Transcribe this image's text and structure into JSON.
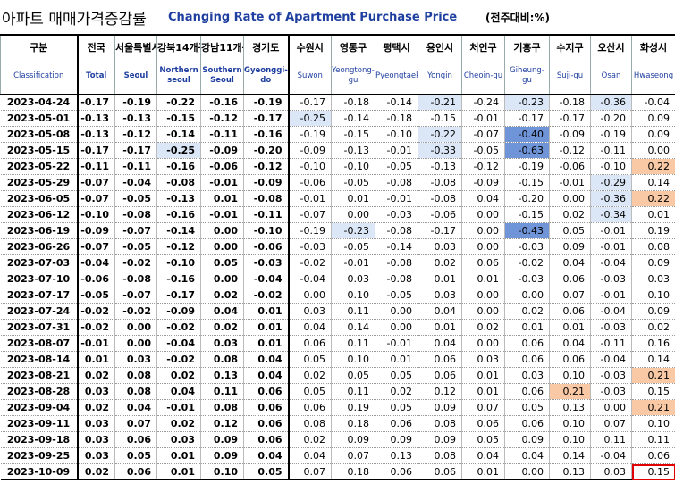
{
  "title": {
    "korean": "아파트 매매가격증감률",
    "english": "Changing Rate of Apartment Purchase Price",
    "unit": "(전주대비:%)"
  },
  "columns": [
    {
      "ko": "구분",
      "en": "Classification"
    },
    {
      "ko": "전국",
      "en": "Total"
    },
    {
      "ko": "서울특별시",
      "en": "Seoul"
    },
    {
      "ko": "강북14개구",
      "en": "Northern seoul"
    },
    {
      "ko": "강남11개구",
      "en": "Southern Seoul"
    },
    {
      "ko": "경기도",
      "en": "Gyeonggi-do"
    },
    {
      "ko": "수원시",
      "en": "Suwon"
    },
    {
      "ko": "영통구",
      "en": "Yeongtong-gu"
    },
    {
      "ko": "평택시",
      "en": "Pyeongtaek"
    },
    {
      "ko": "용인시",
      "en": "Yongin"
    },
    {
      "ko": "처인구",
      "en": "Cheoin-gu"
    },
    {
      "ko": "기흥구",
      "en": "Giheung-gu"
    },
    {
      "ko": "수지구",
      "en": "Suji-gu"
    },
    {
      "ko": "오산시",
      "en": "Osan"
    },
    {
      "ko": "화성시",
      "en": "Hwaseong"
    }
  ],
  "colors": {
    "light_blue": "#dbe7f7",
    "mid_blue": "#6f95d8",
    "orange": "#f9c9a6",
    "highlight_box": "#e00000"
  },
  "rows": [
    {
      "date": "2023-04-24",
      "v": [
        "-0.17",
        "-0.19",
        "-0.22",
        "-0.16",
        "-0.19",
        "-0.17",
        "-0.18",
        "-0.14",
        "-0.21",
        "-0.24",
        "-0.23",
        "-0.18",
        "-0.36",
        "-0.04"
      ]
    },
    {
      "date": "2023-05-01",
      "v": [
        "-0.13",
        "-0.13",
        "-0.15",
        "-0.12",
        "-0.17",
        "-0.25",
        "-0.14",
        "-0.18",
        "-0.15",
        "-0.01",
        "-0.17",
        "-0.17",
        "-0.20",
        "0.09"
      ]
    },
    {
      "date": "2023-05-08",
      "v": [
        "-0.13",
        "-0.12",
        "-0.14",
        "-0.11",
        "-0.16",
        "-0.19",
        "-0.15",
        "-0.10",
        "-0.22",
        "-0.07",
        "-0.40",
        "-0.09",
        "-0.19",
        "0.09"
      ]
    },
    {
      "date": "2023-05-15",
      "v": [
        "-0.17",
        "-0.17",
        "-0.25",
        "-0.09",
        "-0.20",
        "-0.09",
        "-0.13",
        "-0.01",
        "-0.33",
        "-0.05",
        "-0.63",
        "-0.12",
        "-0.11",
        "0.00"
      ]
    },
    {
      "date": "2023-05-22",
      "v": [
        "-0.11",
        "-0.11",
        "-0.16",
        "-0.06",
        "-0.12",
        "-0.10",
        "-0.10",
        "-0.05",
        "-0.13",
        "-0.12",
        "-0.19",
        "-0.06",
        "-0.10",
        "0.22"
      ]
    },
    {
      "date": "2023-05-29",
      "v": [
        "-0.07",
        "-0.04",
        "-0.08",
        "-0.01",
        "-0.09",
        "-0.06",
        "-0.05",
        "-0.08",
        "-0.08",
        "-0.09",
        "-0.15",
        "-0.01",
        "-0.29",
        "0.14"
      ]
    },
    {
      "date": "2023-06-05",
      "v": [
        "-0.07",
        "-0.05",
        "-0.13",
        "0.01",
        "-0.08",
        "-0.01",
        "0.01",
        "-0.01",
        "-0.08",
        "0.04",
        "-0.20",
        "0.00",
        "-0.36",
        "0.22"
      ]
    },
    {
      "date": "2023-06-12",
      "v": [
        "-0.10",
        "-0.08",
        "-0.16",
        "-0.01",
        "-0.11",
        "-0.07",
        "0.00",
        "-0.03",
        "-0.06",
        "0.00",
        "-0.15",
        "0.02",
        "-0.34",
        "0.01"
      ]
    },
    {
      "date": "2023-06-19",
      "v": [
        "-0.09",
        "-0.07",
        "-0.14",
        "0.00",
        "-0.10",
        "-0.19",
        "-0.23",
        "-0.08",
        "-0.17",
        "0.00",
        "-0.43",
        "0.05",
        "-0.01",
        "0.19"
      ]
    },
    {
      "date": "2023-06-26",
      "v": [
        "-0.07",
        "-0.05",
        "-0.12",
        "0.00",
        "-0.06",
        "-0.03",
        "-0.05",
        "-0.14",
        "0.03",
        "0.00",
        "-0.03",
        "0.09",
        "-0.01",
        "0.08"
      ]
    },
    {
      "date": "2023-07-03",
      "v": [
        "-0.04",
        "-0.02",
        "-0.10",
        "0.05",
        "-0.03",
        "-0.02",
        "-0.01",
        "-0.08",
        "0.02",
        "0.06",
        "-0.02",
        "0.04",
        "-0.04",
        "0.09"
      ]
    },
    {
      "date": "2023-07-10",
      "v": [
        "-0.06",
        "-0.08",
        "-0.16",
        "0.00",
        "-0.04",
        "-0.04",
        "0.03",
        "-0.08",
        "0.01",
        "0.01",
        "-0.03",
        "0.06",
        "-0.03",
        "0.03"
      ]
    },
    {
      "date": "2023-07-17",
      "v": [
        "-0.05",
        "-0.07",
        "-0.17",
        "0.02",
        "-0.02",
        "0.00",
        "0.10",
        "-0.05",
        "0.03",
        "0.00",
        "0.00",
        "0.07",
        "-0.01",
        "0.10"
      ]
    },
    {
      "date": "2023-07-24",
      "v": [
        "-0.02",
        "-0.02",
        "-0.09",
        "0.04",
        "0.01",
        "0.03",
        "0.11",
        "0.00",
        "0.04",
        "0.00",
        "0.02",
        "0.06",
        "-0.04",
        "0.09"
      ]
    },
    {
      "date": "2023-07-31",
      "v": [
        "-0.02",
        "0.00",
        "-0.02",
        "0.02",
        "0.01",
        "0.04",
        "0.14",
        "0.00",
        "0.01",
        "0.02",
        "0.01",
        "0.01",
        "-0.03",
        "0.02"
      ]
    },
    {
      "date": "2023-08-07",
      "v": [
        "-0.01",
        "0.00",
        "-0.04",
        "0.03",
        "0.01",
        "0.06",
        "0.11",
        "-0.01",
        "0.04",
        "0.00",
        "0.06",
        "0.04",
        "-0.11",
        "0.16"
      ]
    },
    {
      "date": "2023-08-14",
      "v": [
        "0.01",
        "0.03",
        "-0.02",
        "0.08",
        "0.04",
        "0.05",
        "0.10",
        "0.01",
        "0.06",
        "0.03",
        "0.06",
        "0.06",
        "-0.04",
        "0.14"
      ]
    },
    {
      "date": "2023-08-21",
      "v": [
        "0.02",
        "0.08",
        "0.02",
        "0.13",
        "0.04",
        "0.02",
        "0.05",
        "0.05",
        "0.06",
        "0.01",
        "0.03",
        "0.10",
        "-0.03",
        "0.21"
      ]
    },
    {
      "date": "2023-08-28",
      "v": [
        "0.03",
        "0.08",
        "0.04",
        "0.11",
        "0.06",
        "0.05",
        "0.11",
        "0.02",
        "0.12",
        "0.01",
        "0.06",
        "0.21",
        "-0.03",
        "0.15"
      ]
    },
    {
      "date": "2023-09-04",
      "v": [
        "0.02",
        "0.04",
        "-0.01",
        "0.08",
        "0.06",
        "0.06",
        "0.19",
        "0.05",
        "0.09",
        "0.07",
        "0.05",
        "0.13",
        "0.00",
        "0.21"
      ]
    },
    {
      "date": "2023-09-11",
      "v": [
        "0.03",
        "0.07",
        "0.02",
        "0.12",
        "0.06",
        "0.08",
        "0.18",
        "0.06",
        "0.08",
        "0.06",
        "0.06",
        "0.10",
        "0.07",
        "0.10"
      ]
    },
    {
      "date": "2023-09-18",
      "v": [
        "0.03",
        "0.06",
        "0.03",
        "0.09",
        "0.06",
        "0.02",
        "0.09",
        "0.09",
        "0.09",
        "0.05",
        "0.09",
        "0.10",
        "0.11",
        "0.11"
      ]
    },
    {
      "date": "2023-09-25",
      "v": [
        "0.03",
        "0.05",
        "0.01",
        "0.09",
        "0.04",
        "0.04",
        "0.07",
        "0.13",
        "0.08",
        "0.04",
        "0.04",
        "0.14",
        "-0.04",
        "0.06"
      ]
    },
    {
      "date": "2023-10-09",
      "v": [
        "0.02",
        "0.06",
        "0.01",
        "0.10",
        "0.05",
        "0.07",
        "0.18",
        "0.06",
        "0.06",
        "0.01",
        "0.00",
        "0.13",
        "0.03",
        "0.15"
      ]
    }
  ],
  "highlights": [
    {
      "r": 0,
      "c": 9,
      "cls": "lb"
    },
    {
      "r": 0,
      "c": 11,
      "cls": "lb"
    },
    {
      "r": 0,
      "c": 13,
      "cls": "lb"
    },
    {
      "r": 1,
      "c": 6,
      "cls": "lb"
    },
    {
      "r": 2,
      "c": 9,
      "cls": "lb"
    },
    {
      "r": 2,
      "c": 11,
      "cls": "mb"
    },
    {
      "r": 3,
      "c": 9,
      "cls": "lb"
    },
    {
      "r": 3,
      "c": 11,
      "cls": "mb"
    },
    {
      "r": 3,
      "c": 3,
      "cls": "lb"
    },
    {
      "r": 4,
      "c": 14,
      "cls": "ob"
    },
    {
      "r": 5,
      "c": 13,
      "cls": "lb"
    },
    {
      "r": 6,
      "c": 13,
      "cls": "lb"
    },
    {
      "r": 6,
      "c": 14,
      "cls": "ob"
    },
    {
      "r": 7,
      "c": 13,
      "cls": "lb"
    },
    {
      "r": 8,
      "c": 7,
      "cls": "lb"
    },
    {
      "r": 8,
      "c": 11,
      "cls": "mb"
    },
    {
      "r": 17,
      "c": 14,
      "cls": "ob"
    },
    {
      "r": 18,
      "c": 12,
      "cls": "ob"
    },
    {
      "r": 19,
      "c": 14,
      "cls": "ob"
    }
  ],
  "boxed": {
    "r": 23,
    "c": 14
  }
}
